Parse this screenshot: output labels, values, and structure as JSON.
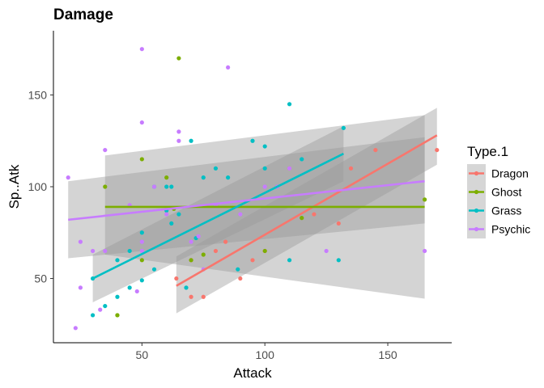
{
  "chart_data": {
    "type": "scatter",
    "title": "Damage",
    "xlabel": "Attack",
    "ylabel": "Sp..Atk",
    "xlim": [
      14,
      176
    ],
    "ylim": [
      15,
      185
    ],
    "xticks": [
      50,
      100,
      150
    ],
    "yticks": [
      50,
      100,
      150
    ],
    "grid": false,
    "legend": {
      "title": "Type.1",
      "placement": "right"
    },
    "series": [
      {
        "name": "Dragon",
        "color": "#F8766D",
        "points": [
          [
            64,
            50
          ],
          [
            70,
            40
          ],
          [
            75,
            40
          ],
          [
            84,
            70
          ],
          [
            90,
            50
          ],
          [
            95,
            60
          ],
          [
            110,
            110
          ],
          [
            130,
            80
          ],
          [
            135,
            110
          ],
          [
            145,
            120
          ],
          [
            170,
            120
          ],
          [
            70,
            60
          ],
          [
            80,
            65
          ],
          [
            100,
            65
          ],
          [
            120,
            85
          ]
        ],
        "fit": {
          "x": [
            64,
            170
          ],
          "y": [
            46,
            128
          ]
        },
        "band": {
          "upper": [
            64,
            62,
            170,
            143
          ],
          "lower": [
            64,
            31,
            170,
            112
          ]
        }
      },
      {
        "name": "Ghost",
        "color": "#7CAE00",
        "points": [
          [
            35,
            100
          ],
          [
            40,
            30
          ],
          [
            50,
            115
          ],
          [
            50,
            60
          ],
          [
            60,
            105
          ],
          [
            65,
            170
          ],
          [
            70,
            60
          ],
          [
            75,
            63
          ],
          [
            100,
            65
          ],
          [
            115,
            83
          ],
          [
            165,
            93
          ],
          [
            40,
            30
          ],
          [
            63,
            88
          ]
        ],
        "fit": {
          "x": [
            35,
            165
          ],
          "y": [
            89,
            89
          ]
        },
        "band": {
          "upper": [
            35,
            117,
            165,
            139
          ],
          "lower": [
            35,
            63,
            165,
            39
          ]
        }
      },
      {
        "name": "Grass",
        "color": "#00BFC4",
        "points": [
          [
            30,
            30
          ],
          [
            30,
            50
          ],
          [
            35,
            35
          ],
          [
            40,
            40
          ],
          [
            40,
            60
          ],
          [
            45,
            65
          ],
          [
            45,
            45
          ],
          [
            50,
            49
          ],
          [
            50,
            75
          ],
          [
            55,
            55
          ],
          [
            55,
            100
          ],
          [
            60,
            87
          ],
          [
            62,
            80
          ],
          [
            62,
            100
          ],
          [
            65,
            85
          ],
          [
            68,
            45
          ],
          [
            70,
            125
          ],
          [
            72,
            72
          ],
          [
            75,
            105
          ],
          [
            80,
            110
          ],
          [
            85,
            105
          ],
          [
            89,
            55
          ],
          [
            95,
            125
          ],
          [
            100,
            122
          ],
          [
            100,
            110
          ],
          [
            105,
            100
          ],
          [
            110,
            145
          ],
          [
            110,
            60
          ],
          [
            115,
            115
          ],
          [
            130,
            60
          ],
          [
            132,
            132
          ],
          [
            60,
            100
          ]
        ],
        "fit": {
          "x": [
            30,
            132
          ],
          "y": [
            50,
            118
          ]
        },
        "band": {
          "upper": [
            30,
            63,
            132,
            133
          ],
          "lower": [
            30,
            37,
            132,
            103
          ]
        }
      },
      {
        "name": "Psychic",
        "color": "#C77CFF",
        "points": [
          [
            20,
            105
          ],
          [
            23,
            23
          ],
          [
            25,
            45
          ],
          [
            25,
            70
          ],
          [
            30,
            65
          ],
          [
            33,
            33
          ],
          [
            35,
            120
          ],
          [
            35,
            65
          ],
          [
            45,
            90
          ],
          [
            48,
            43
          ],
          [
            50,
            175
          ],
          [
            50,
            135
          ],
          [
            50,
            65
          ],
          [
            55,
            100
          ],
          [
            60,
            85
          ],
          [
            65,
            130
          ],
          [
            65,
            125
          ],
          [
            73,
            73
          ],
          [
            75,
            55
          ],
          [
            85,
            165
          ],
          [
            80,
            90
          ],
          [
            90,
            85
          ],
          [
            100,
            100
          ],
          [
            105,
            100
          ],
          [
            110,
            110
          ],
          [
            125,
            65
          ],
          [
            165,
            65
          ],
          [
            50,
            70
          ],
          [
            70,
            70
          ]
        ],
        "fit": {
          "x": [
            20,
            165
          ],
          "y": [
            82,
            103
          ]
        },
        "band": {
          "upper": [
            20,
            103,
            165,
            127
          ],
          "lower": [
            20,
            61,
            165,
            80
          ]
        }
      }
    ]
  }
}
